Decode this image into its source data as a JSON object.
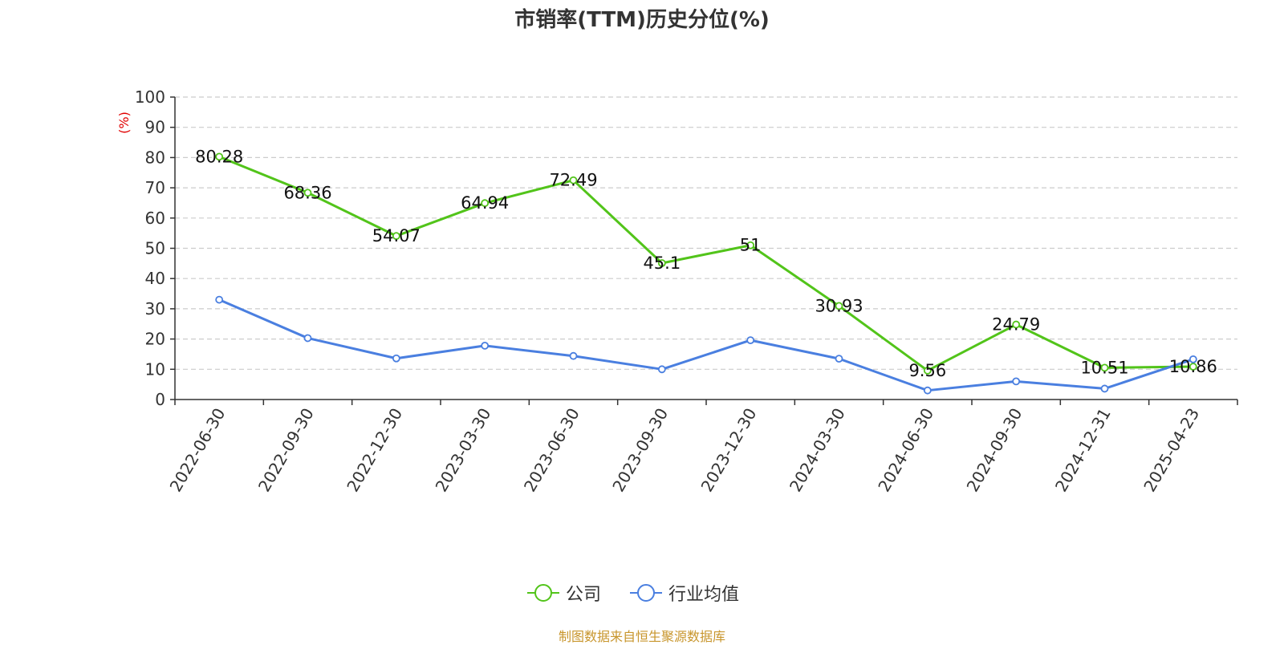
{
  "chart_data": {
    "type": "line",
    "title": "市销率(TTM)历史分位(%)",
    "ylabel": "(%)",
    "xlabel": "",
    "ylim": [
      0,
      100
    ],
    "yticks": [
      0,
      10,
      20,
      30,
      40,
      50,
      60,
      70,
      80,
      90,
      100
    ],
    "categories": [
      "2022-06-30",
      "2022-09-30",
      "2022-12-30",
      "2023-03-30",
      "2023-06-30",
      "2023-09-30",
      "2023-12-30",
      "2024-03-30",
      "2024-06-30",
      "2024-09-30",
      "2024-12-31",
      "2025-04-23"
    ],
    "series": [
      {
        "name": "公司",
        "color": "#52c41a",
        "values": [
          80.28,
          68.36,
          54.07,
          64.94,
          72.49,
          45.1,
          51,
          30.93,
          9.56,
          24.79,
          10.51,
          10.86
        ],
        "data_labels": [
          "80.28",
          "68.36",
          "54.07",
          "64.94",
          "72.49",
          "45.1",
          "51",
          "30.93",
          "9.56",
          "24.79",
          "10.51",
          "10.86"
        ]
      },
      {
        "name": "行业均值",
        "color": "#4a7fe0",
        "values": [
          33.0,
          20.3,
          13.6,
          17.8,
          14.4,
          10.0,
          19.6,
          13.5,
          3.0,
          6.0,
          3.6,
          13.3
        ]
      }
    ],
    "grid": true,
    "legend_position": "bottom-center"
  },
  "footer": {
    "source": "制图数据来自恒生聚源数据库"
  }
}
